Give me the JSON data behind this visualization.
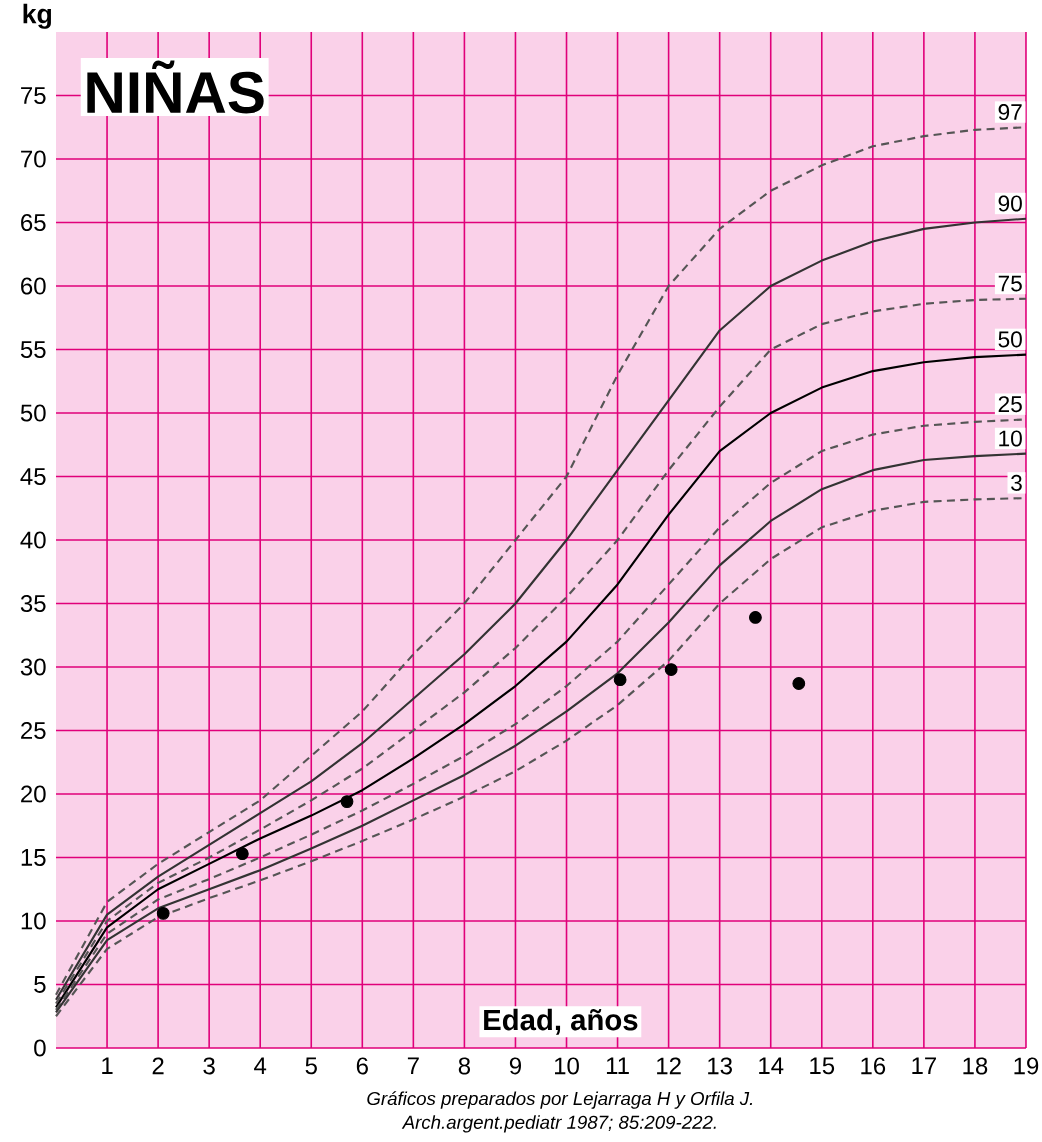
{
  "chart_data": {
    "type": "line",
    "title": "NIÑAS",
    "xlabel": "Edad, años",
    "ylabel": "kg",
    "annotations": [
      "Gráficos preparados por Lejarraga H y Orfila J.",
      "Arch.argent.pediatr 1987; 85:209-222."
    ],
    "x": [
      0,
      1,
      2,
      3,
      4,
      5,
      6,
      7,
      8,
      9,
      10,
      11,
      12,
      13,
      14,
      15,
      16,
      17,
      18,
      19
    ],
    "xlim": [
      0,
      19
    ],
    "xticks": [
      1,
      2,
      3,
      4,
      5,
      6,
      7,
      8,
      9,
      10,
      11,
      12,
      13,
      14,
      15,
      16,
      17,
      18,
      19
    ],
    "ylim": [
      0,
      80
    ],
    "yticks": [
      0,
      5,
      10,
      15,
      20,
      25,
      30,
      35,
      40,
      45,
      50,
      55,
      60,
      65,
      70,
      75
    ],
    "grid": true,
    "marker": "none",
    "series": [
      {
        "name": "97",
        "color": "#555555",
        "line_style": "dashed",
        "values": [
          4.2,
          11.5,
          14.5,
          17,
          19.5,
          23,
          26.5,
          31,
          35,
          40,
          45,
          53,
          60,
          64.5,
          67.5,
          69.5,
          71,
          71.8,
          72.3,
          72.5
        ]
      },
      {
        "name": "90",
        "color": "#333333",
        "line_style": "solid",
        "values": [
          3.8,
          10.5,
          13.5,
          16,
          18.5,
          21,
          24,
          27.5,
          31,
          35,
          40,
          45.5,
          51,
          56.5,
          60,
          62,
          63.5,
          64.5,
          65,
          65.3
        ]
      },
      {
        "name": "75",
        "color": "#555555",
        "line_style": "dashed",
        "values": [
          3.5,
          10,
          13,
          15,
          17.2,
          19.5,
          22,
          25,
          28,
          31.5,
          35.5,
          40,
          45.5,
          50.5,
          55,
          57,
          58,
          58.6,
          58.9,
          59
        ]
      },
      {
        "name": "50",
        "color": "#000000",
        "line_style": "solid",
        "values": [
          3.2,
          9.5,
          12.5,
          14.5,
          16.5,
          18.3,
          20.3,
          22.8,
          25.5,
          28.5,
          32,
          36.5,
          42,
          47,
          50,
          52,
          53.3,
          54,
          54.4,
          54.6
        ]
      },
      {
        "name": "25",
        "color": "#555555",
        "line_style": "dashed",
        "values": [
          3,
          9,
          11.7,
          13.3,
          15,
          16.8,
          18.7,
          20.8,
          23,
          25.5,
          28.5,
          32,
          36.5,
          41,
          44.5,
          47,
          48.3,
          49,
          49.3,
          49.5
        ]
      },
      {
        "name": "10",
        "color": "#333333",
        "line_style": "solid",
        "values": [
          2.8,
          8.5,
          11,
          12.5,
          14,
          15.7,
          17.5,
          19.5,
          21.5,
          23.8,
          26.5,
          29.5,
          33.5,
          38,
          41.5,
          44,
          45.5,
          46.3,
          46.6,
          46.8
        ]
      },
      {
        "name": "3",
        "color": "#555555",
        "line_style": "dashed",
        "values": [
          2.5,
          7.8,
          10.3,
          11.8,
          13.2,
          14.7,
          16.3,
          18,
          19.8,
          21.8,
          24.2,
          27,
          30.5,
          35,
          38.5,
          41,
          42.3,
          43,
          43.2,
          43.3
        ]
      },
      {
        "type": "scatter",
        "marker": "circle",
        "color": "#000000",
        "x": [
          2.1,
          3.65,
          5.7,
          11.05,
          12.05,
          13.7,
          14.55
        ],
        "values": [
          10.6,
          15.3,
          19.4,
          29,
          29.8,
          33.9,
          28.7
        ]
      }
    ]
  }
}
